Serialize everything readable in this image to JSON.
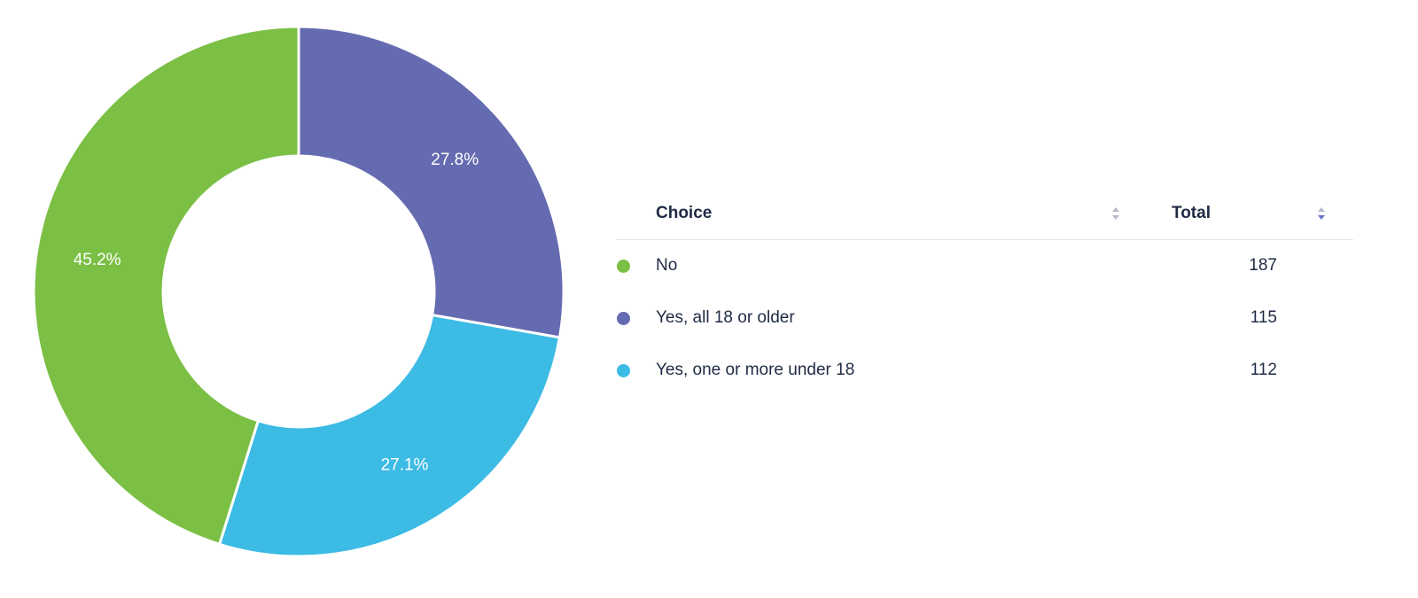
{
  "chart_data": {
    "type": "pie",
    "donut": true,
    "categories": [
      "No",
      "Yes, all 18 or older",
      "Yes, one or more under 18"
    ],
    "values": [
      187,
      115,
      112
    ],
    "slice_labels": [
      "45.2%",
      "27.8%",
      "27.1%"
    ],
    "colors": [
      "#7bbf44",
      "#656bb0",
      "#3cbbe4"
    ],
    "title": "",
    "legend_placement": "right"
  },
  "table": {
    "headers": {
      "choice": "Choice",
      "total": "Total"
    },
    "rows": [
      {
        "choice": "No",
        "total": "187",
        "color": "#7bbf44"
      },
      {
        "choice": "Yes, all 18 or older",
        "total": "115",
        "color": "#656bb0"
      },
      {
        "choice": "Yes, one or more under 18",
        "total": "112",
        "color": "#3cbbe4"
      }
    ]
  },
  "icons": {
    "sort": "sort-icon"
  }
}
